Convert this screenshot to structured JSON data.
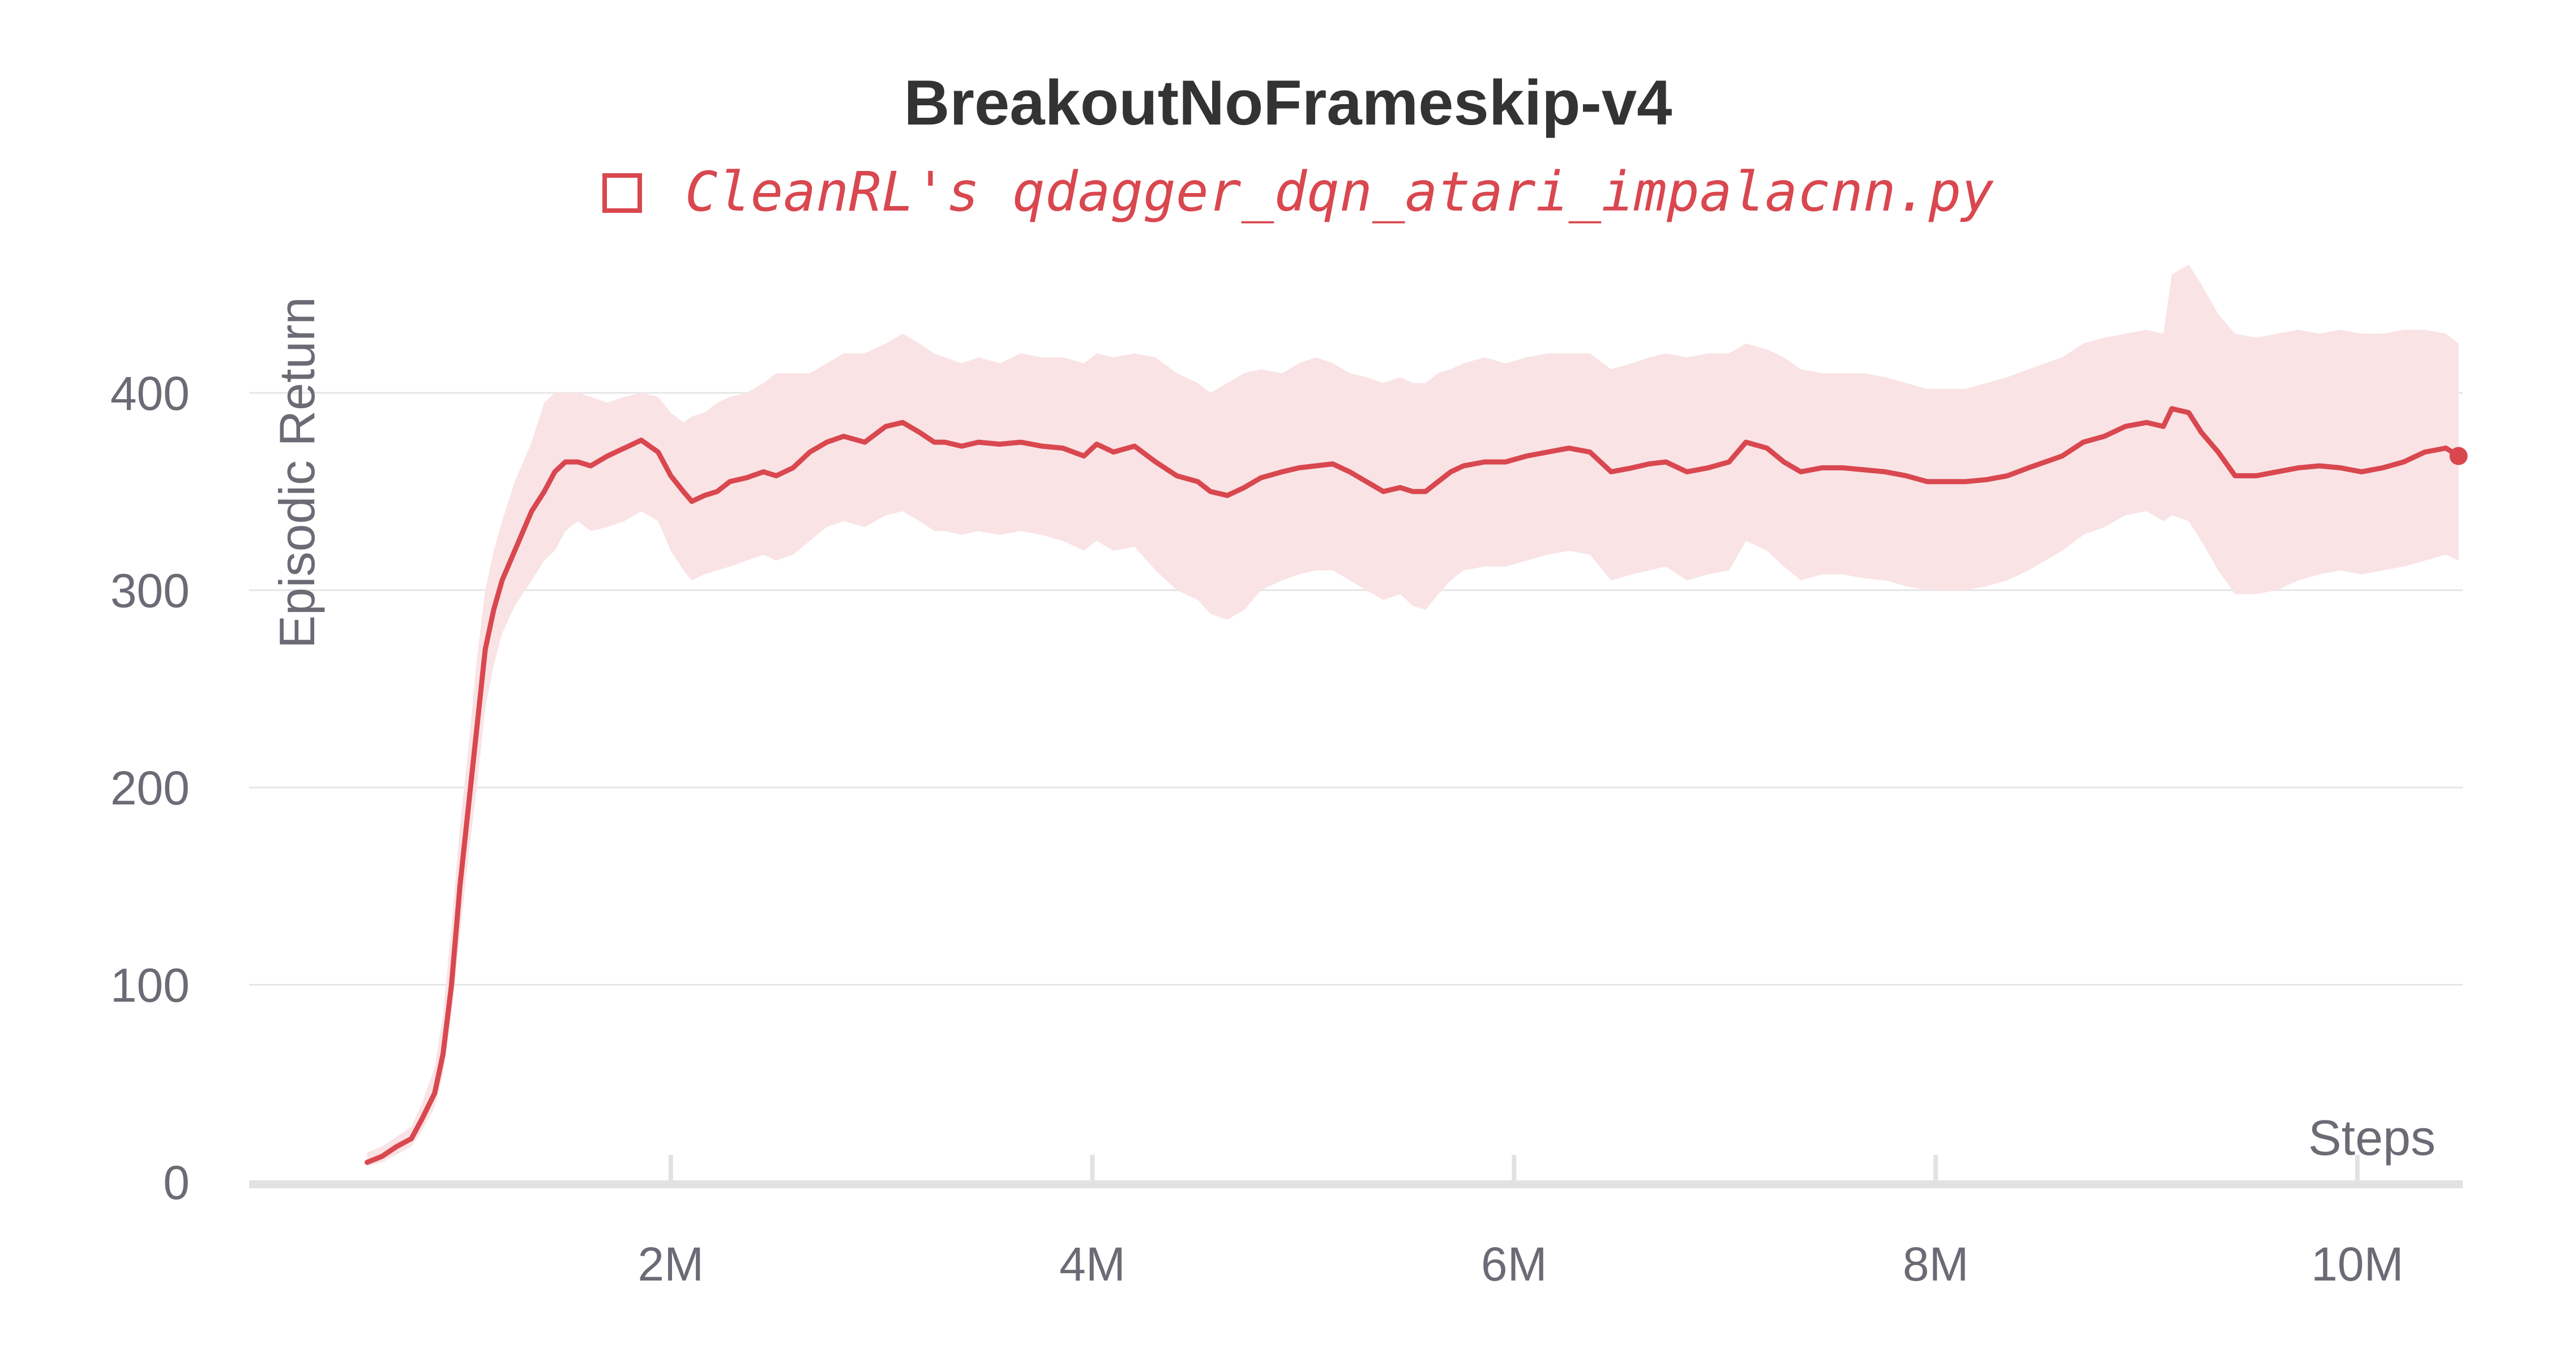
{
  "chart_data": {
    "type": "line",
    "title": "BreakoutNoFrameskip-v4",
    "xlabel": "Steps",
    "ylabel": "Episodic Return",
    "xlim": [
      0.0,
      10.5
    ],
    "ylim": [
      0,
      400
    ],
    "x_unit": "M steps",
    "x_ticks": [
      2,
      4,
      6,
      8,
      10
    ],
    "x_tick_labels": [
      "2M",
      "4M",
      "6M",
      "8M",
      "10M"
    ],
    "y_ticks": [
      0,
      100,
      200,
      300,
      400
    ],
    "y_tick_labels": [
      "0",
      "100",
      "200",
      "300",
      "400"
    ],
    "grid": "horizontal",
    "legend_position": "top-center",
    "series": [
      {
        "name": "CleanRL's qdagger_dqn_atari_impalacnn.py",
        "color": "#d9474f",
        "band_color": "#f9e3e5",
        "x": [
          0.56,
          0.63,
          0.7,
          0.77,
          0.82,
          0.88,
          0.92,
          0.96,
          1.0,
          1.04,
          1.08,
          1.12,
          1.16,
          1.2,
          1.26,
          1.34,
          1.4,
          1.45,
          1.5,
          1.56,
          1.62,
          1.7,
          1.78,
          1.86,
          1.94,
          2.0,
          2.06,
          2.1,
          2.16,
          2.22,
          2.28,
          2.36,
          2.44,
          2.5,
          2.58,
          2.66,
          2.74,
          2.82,
          2.92,
          3.02,
          3.1,
          3.18,
          3.25,
          3.3,
          3.38,
          3.46,
          3.56,
          3.66,
          3.76,
          3.86,
          3.96,
          4.02,
          4.1,
          4.2,
          4.3,
          4.4,
          4.5,
          4.56,
          4.64,
          4.72,
          4.8,
          4.9,
          4.98,
          5.06,
          5.14,
          5.22,
          5.3,
          5.38,
          5.46,
          5.52,
          5.58,
          5.64,
          5.7,
          5.76,
          5.86,
          5.96,
          6.06,
          6.16,
          6.26,
          6.36,
          6.46,
          6.56,
          6.64,
          6.72,
          6.82,
          6.92,
          7.02,
          7.1,
          7.2,
          7.28,
          7.36,
          7.46,
          7.56,
          7.66,
          7.76,
          7.86,
          7.96,
          8.04,
          8.14,
          8.24,
          8.34,
          8.44,
          8.52,
          8.6,
          8.7,
          8.8,
          8.9,
          9.0,
          9.08,
          9.12,
          9.2,
          9.26,
          9.34,
          9.42,
          9.52,
          9.62,
          9.72,
          9.82,
          9.92,
          10.02,
          10.12,
          10.22,
          10.32,
          10.42,
          10.48
        ],
        "values": [
          10,
          13,
          18,
          22,
          32,
          45,
          65,
          100,
          150,
          190,
          230,
          270,
          290,
          305,
          320,
          340,
          350,
          360,
          365,
          365,
          363,
          368,
          372,
          376,
          370,
          358,
          350,
          345,
          348,
          350,
          355,
          357,
          360,
          358,
          362,
          370,
          375,
          378,
          375,
          383,
          385,
          380,
          375,
          375,
          373,
          375,
          374,
          375,
          373,
          372,
          368,
          374,
          370,
          373,
          365,
          358,
          355,
          350,
          348,
          352,
          357,
          360,
          362,
          363,
          364,
          360,
          355,
          350,
          352,
          350,
          350,
          355,
          360,
          363,
          365,
          365,
          368,
          370,
          372,
          370,
          360,
          362,
          364,
          365,
          360,
          362,
          365,
          375,
          372,
          365,
          360,
          362,
          362,
          361,
          360,
          358,
          355,
          355,
          355,
          356,
          358,
          362,
          365,
          368,
          375,
          378,
          383,
          385,
          383,
          392,
          390,
          380,
          370,
          358,
          358,
          360,
          362,
          363,
          362,
          360,
          362,
          365,
          370,
          372,
          368
        ],
        "upper": [
          15,
          18,
          23,
          28,
          40,
          58,
          85,
          130,
          180,
          220,
          265,
          300,
          320,
          335,
          355,
          375,
          395,
          400,
          400,
          400,
          398,
          395,
          398,
          400,
          398,
          390,
          385,
          388,
          390,
          395,
          398,
          400,
          405,
          410,
          410,
          410,
          415,
          420,
          420,
          425,
          430,
          425,
          420,
          418,
          415,
          418,
          415,
          420,
          418,
          418,
          415,
          420,
          418,
          420,
          418,
          410,
          405,
          400,
          405,
          410,
          412,
          410,
          415,
          418,
          415,
          410,
          408,
          405,
          408,
          405,
          405,
          410,
          412,
          415,
          418,
          415,
          418,
          420,
          420,
          420,
          412,
          415,
          418,
          420,
          418,
          420,
          420,
          425,
          422,
          418,
          412,
          410,
          410,
          410,
          408,
          405,
          402,
          402,
          402,
          405,
          408,
          412,
          415,
          418,
          425,
          428,
          430,
          432,
          430,
          460,
          465,
          455,
          440,
          430,
          428,
          430,
          432,
          430,
          432,
          430,
          430,
          432,
          432,
          430,
          425
        ],
        "lower": [
          8,
          10,
          14,
          18,
          26,
          38,
          55,
          85,
          125,
          165,
          200,
          240,
          262,
          278,
          292,
          305,
          315,
          320,
          330,
          335,
          330,
          332,
          335,
          340,
          335,
          320,
          310,
          305,
          308,
          310,
          312,
          315,
          318,
          315,
          318,
          325,
          332,
          335,
          332,
          338,
          340,
          335,
          330,
          330,
          328,
          330,
          328,
          330,
          328,
          325,
          320,
          325,
          320,
          322,
          310,
          300,
          295,
          288,
          285,
          290,
          300,
          305,
          308,
          310,
          310,
          305,
          300,
          295,
          298,
          292,
          290,
          298,
          305,
          310,
          312,
          312,
          315,
          318,
          320,
          318,
          305,
          308,
          310,
          312,
          305,
          308,
          310,
          325,
          320,
          312,
          305,
          308,
          308,
          306,
          305,
          302,
          300,
          300,
          300,
          302,
          305,
          310,
          315,
          320,
          328,
          332,
          338,
          340,
          335,
          338,
          335,
          325,
          310,
          298,
          298,
          300,
          305,
          308,
          310,
          308,
          310,
          312,
          315,
          318,
          315
        ]
      }
    ]
  }
}
